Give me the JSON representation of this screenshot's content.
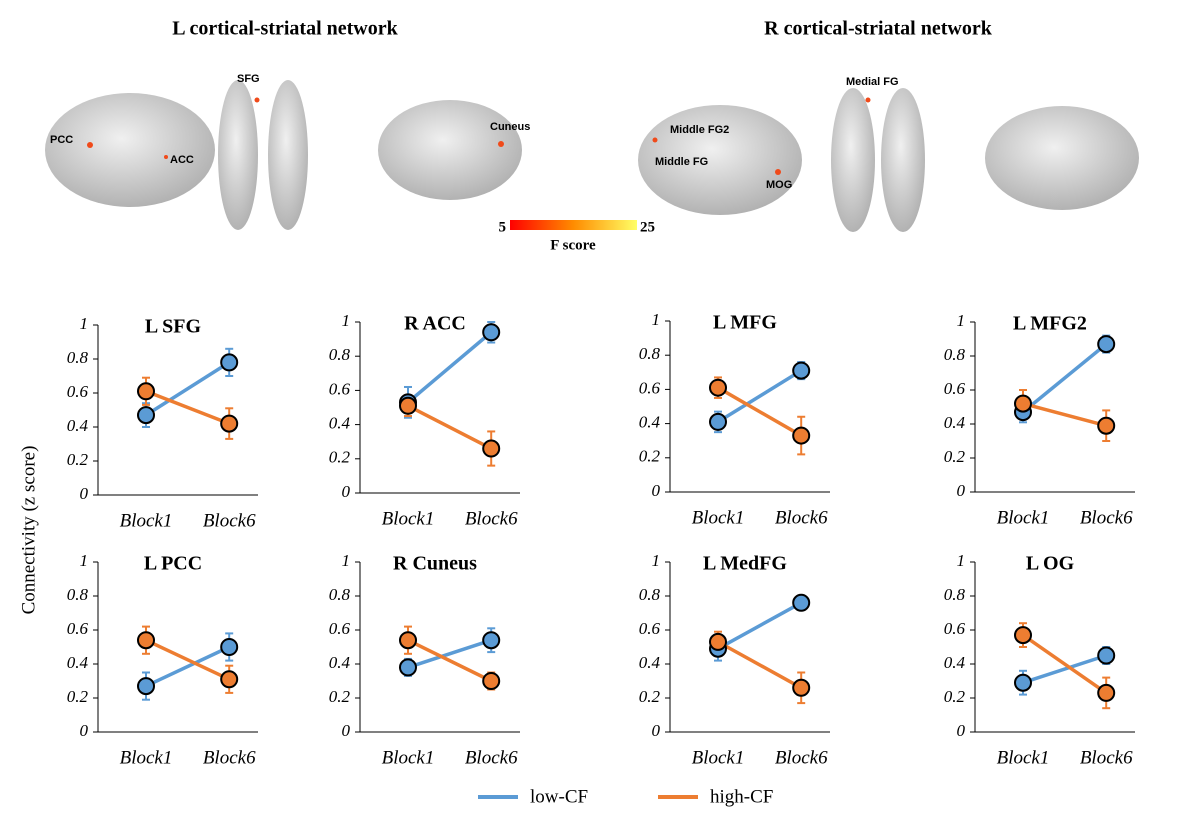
{
  "figure": {
    "networks": [
      "L cortical-striatal network",
      "R cortical-striatal network"
    ],
    "regions": [
      "PCC",
      "ACC",
      "SFG",
      "Cuneus",
      "Middle FG2",
      "Middle FG",
      "MOG",
      "Medial FG"
    ],
    "colorbar": {
      "min": 5,
      "max": 25,
      "label": "F score"
    },
    "ylabel": "Connectivity (z score)"
  },
  "chart_data": [
    {
      "type": "line",
      "title": "L SFG",
      "categories": [
        "Block1",
        "Block6"
      ],
      "ylim": [
        0,
        1
      ],
      "yticks": [
        0,
        0.2,
        0.4,
        0.6,
        0.8,
        1
      ],
      "series": [
        {
          "name": "low-CF",
          "color": "#5b9bd5",
          "values": [
            0.47,
            0.78
          ],
          "errors": [
            0.07,
            0.08
          ]
        },
        {
          "name": "high-CF",
          "color": "#ed7d31",
          "values": [
            0.61,
            0.42
          ],
          "errors": [
            0.08,
            0.09
          ]
        }
      ]
    },
    {
      "type": "line",
      "title": "R ACC",
      "categories": [
        "Block1",
        "Block6"
      ],
      "ylim": [
        0,
        1
      ],
      "yticks": [
        0,
        0.2,
        0.4,
        0.6,
        0.8,
        1
      ],
      "series": [
        {
          "name": "low-CF",
          "color": "#5b9bd5",
          "values": [
            0.53,
            0.94
          ],
          "errors": [
            0.09,
            0.06
          ]
        },
        {
          "name": "high-CF",
          "color": "#ed7d31",
          "values": [
            0.51,
            0.26
          ],
          "errors": [
            0.06,
            0.1
          ]
        }
      ]
    },
    {
      "type": "line",
      "title": "L MFG",
      "categories": [
        "Block1",
        "Block6"
      ],
      "ylim": [
        0,
        1
      ],
      "yticks": [
        0,
        0.2,
        0.4,
        0.6,
        0.8,
        1
      ],
      "series": [
        {
          "name": "low-CF",
          "color": "#5b9bd5",
          "values": [
            0.41,
            0.71
          ],
          "errors": [
            0.06,
            0.05
          ]
        },
        {
          "name": "high-CF",
          "color": "#ed7d31",
          "values": [
            0.61,
            0.33
          ],
          "errors": [
            0.06,
            0.11
          ]
        }
      ]
    },
    {
      "type": "line",
      "title": "L MFG2",
      "categories": [
        "Block1",
        "Block6"
      ],
      "ylim": [
        0,
        1
      ],
      "yticks": [
        0,
        0.2,
        0.4,
        0.6,
        0.8,
        1
      ],
      "series": [
        {
          "name": "low-CF",
          "color": "#5b9bd5",
          "values": [
            0.47,
            0.87
          ],
          "errors": [
            0.06,
            0.05
          ]
        },
        {
          "name": "high-CF",
          "color": "#ed7d31",
          "values": [
            0.52,
            0.39
          ],
          "errors": [
            0.08,
            0.09
          ]
        }
      ]
    },
    {
      "type": "line",
      "title": "L PCC",
      "categories": [
        "Block1",
        "Block6"
      ],
      "ylim": [
        0,
        1
      ],
      "yticks": [
        0,
        0.2,
        0.4,
        0.6,
        0.8,
        1
      ],
      "series": [
        {
          "name": "low-CF",
          "color": "#5b9bd5",
          "values": [
            0.27,
            0.5
          ],
          "errors": [
            0.08,
            0.08
          ]
        },
        {
          "name": "high-CF",
          "color": "#ed7d31",
          "values": [
            0.54,
            0.31
          ],
          "errors": [
            0.08,
            0.08
          ]
        }
      ]
    },
    {
      "type": "line",
      "title": "R Cuneus",
      "categories": [
        "Block1",
        "Block6"
      ],
      "ylim": [
        0,
        1
      ],
      "yticks": [
        0,
        0.2,
        0.4,
        0.6,
        0.8,
        1
      ],
      "series": [
        {
          "name": "low-CF",
          "color": "#5b9bd5",
          "values": [
            0.38,
            0.54
          ],
          "errors": [
            0.05,
            0.07
          ]
        },
        {
          "name": "high-CF",
          "color": "#ed7d31",
          "values": [
            0.54,
            0.3
          ],
          "errors": [
            0.08,
            0.05
          ]
        }
      ]
    },
    {
      "type": "line",
      "title": "L MedFG",
      "categories": [
        "Block1",
        "Block6"
      ],
      "ylim": [
        0,
        1
      ],
      "yticks": [
        0,
        0.2,
        0.4,
        0.6,
        0.8,
        1
      ],
      "series": [
        {
          "name": "low-CF",
          "color": "#5b9bd5",
          "values": [
            0.49,
            0.76
          ],
          "errors": [
            0.07,
            0.04
          ]
        },
        {
          "name": "high-CF",
          "color": "#ed7d31",
          "values": [
            0.53,
            0.26
          ],
          "errors": [
            0.06,
            0.09
          ]
        }
      ]
    },
    {
      "type": "line",
      "title": "L OG",
      "categories": [
        "Block1",
        "Block6"
      ],
      "ylim": [
        0,
        1
      ],
      "yticks": [
        0,
        0.2,
        0.4,
        0.6,
        0.8,
        1
      ],
      "series": [
        {
          "name": "low-CF",
          "color": "#5b9bd5",
          "values": [
            0.29,
            0.45
          ],
          "errors": [
            0.07,
            0.05
          ]
        },
        {
          "name": "high-CF",
          "color": "#ed7d31",
          "values": [
            0.57,
            0.23
          ],
          "errors": [
            0.07,
            0.09
          ]
        }
      ]
    }
  ]
}
